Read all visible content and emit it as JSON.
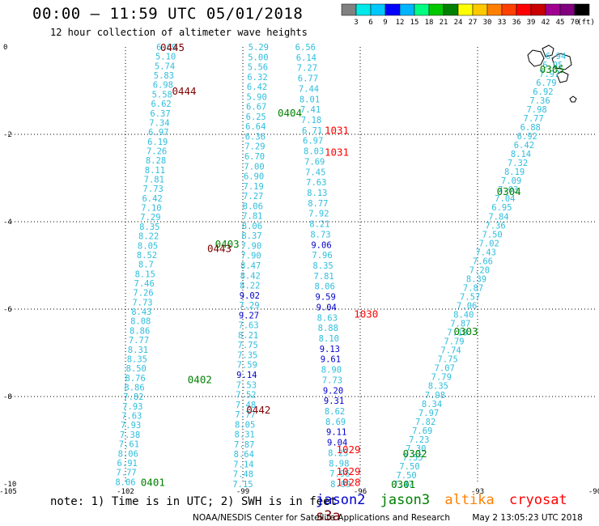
{
  "header": {
    "title": "00:00 – 11:59 UTC 05/01/2018",
    "subtitle": "12 hour collection of altimeter wave heights"
  },
  "colorbar": {
    "unit_label": "(ft)",
    "colors": [
      "#808080",
      "#00e8e8",
      "#00c8ff",
      "#0000ff",
      "#00b4ff",
      "#00ff80",
      "#00c800",
      "#008000",
      "#ffff00",
      "#ffc800",
      "#ff8000",
      "#ff4000",
      "#ff0000",
      "#c80000",
      "#a00090",
      "#800080",
      "#000000"
    ],
    "ticks": [
      "3",
      "6",
      "9",
      "12",
      "15",
      "18",
      "21",
      "24",
      "27",
      "30",
      "33",
      "36",
      "39",
      "42",
      "45",
      "70"
    ]
  },
  "map": {
    "lon_ticks": [
      "-105",
      "-102",
      "-99",
      "-96",
      "-93",
      "-90"
    ],
    "lat_ticks": [
      "0",
      "-2",
      "-4",
      "-6",
      "-8",
      "-10"
    ],
    "colors": {
      "jason2": "#0000cc",
      "jason3": "#008000",
      "altika": "#ff8000",
      "cryosat": "#ff0000",
      "s3a": "#800000",
      "swh_light": "#2ebedc"
    }
  },
  "track_labels": [
    {
      "text": "0445",
      "mission": "s3a",
      "lon": -100.8,
      "lat": 0.0
    },
    {
      "text": "0444",
      "mission": "s3a",
      "lon": -100.5,
      "lat": -1.0
    },
    {
      "text": "0404",
      "mission": "jason3",
      "lon": -97.8,
      "lat": -1.5
    },
    {
      "text": "1031",
      "mission": "cryosat",
      "lon": -96.6,
      "lat": -1.9
    },
    {
      "text": "1031",
      "mission": "cryosat",
      "lon": -96.6,
      "lat": -2.4
    },
    {
      "text": "0403",
      "mission": "jason3",
      "lon": -99.4,
      "lat": -4.5
    },
    {
      "text": "0443",
      "mission": "s3a",
      "lon": -99.6,
      "lat": -4.6
    },
    {
      "text": "1030",
      "mission": "cryosat",
      "lon": -95.85,
      "lat": -6.1
    },
    {
      "text": "0402",
      "mission": "jason3",
      "lon": -100.1,
      "lat": -7.6
    },
    {
      "text": "0442",
      "mission": "s3a",
      "lon": -98.6,
      "lat": -8.3
    },
    {
      "text": "1029",
      "mission": "cryosat",
      "lon": -96.3,
      "lat": -9.2
    },
    {
      "text": "1029",
      "mission": "cryosat",
      "lon": -96.3,
      "lat": -9.7
    },
    {
      "text": "1028",
      "mission": "cryosat",
      "lon": -96.3,
      "lat": -9.95
    },
    {
      "text": "0401",
      "mission": "jason3",
      "lon": -101.3,
      "lat": -9.95
    },
    {
      "text": "0302",
      "mission": "jason3",
      "lon": -94.6,
      "lat": -9.3
    },
    {
      "text": "0301",
      "mission": "jason3",
      "lon": -94.9,
      "lat": -10.0
    },
    {
      "text": "0303",
      "mission": "jason3",
      "lon": -93.3,
      "lat": -6.5
    },
    {
      "text": "0304",
      "mission": "jason3",
      "lon": -92.2,
      "lat": -3.3
    },
    {
      "text": "0305",
      "mission": "jason3",
      "lon": -91.1,
      "lat": -0.5
    }
  ],
  "tracks": [
    {
      "name": "track-a",
      "lon0": -100.95,
      "lat0": 0.0,
      "lon1": -102.0,
      "lat1": -9.95,
      "values": [
        "6.69",
        "5.10",
        "5.74",
        "5.83",
        "6.98",
        "5.58",
        "6.62",
        "6.37",
        "7.34",
        "6.97",
        "6.19",
        "7.26",
        "8.28",
        "8.11",
        "7.81",
        "7.73",
        "6.42",
        "7.10",
        "7.29",
        "8.35",
        "8.22",
        "8.05",
        "8.52",
        "8.7",
        "8.15",
        "7.46",
        "7.26",
        "7.73",
        "8.43",
        "8.08",
        "8.86",
        "7.77",
        "8.31",
        "8.35",
        "8.50",
        "8.76",
        "8.86",
        "7.82",
        "7.93",
        "7.63",
        "7.93",
        "7.38",
        "7.61",
        "8.06",
        "6.91",
        "7.77",
        "8.06"
      ],
      "colors": []
    },
    {
      "name": "track-b",
      "lon0": -98.6,
      "lat0": 0.0,
      "lon1": -99.0,
      "lat1": -10.0,
      "values": [
        "5.29",
        "5.00",
        "5.56",
        "6.32",
        "6.42",
        "5.90",
        "6.67",
        "6.25",
        "6.64",
        "6.36",
        "7.29",
        "6.70",
        "7.00",
        "6.90",
        "7.19",
        "7.27",
        "8.06",
        "7.81",
        "8.06",
        "8.37",
        "7.90",
        "7.90",
        "8.47",
        "8.42",
        "8.22",
        "9.02",
        "7.29",
        "9.27",
        "7.63",
        "8.21",
        "7.75",
        "7.35",
        "7.59",
        "9.14",
        "7.53",
        "7.52",
        "7.48",
        "7.77",
        "8.05",
        "8.31",
        "7.87",
        "8.64",
        "7.14",
        "7.48",
        "7.15"
      ],
      "colors": [
        "",
        "",
        "",
        "",
        "",
        "",
        "",
        "",
        "",
        "",
        "",
        "",
        "",
        "",
        "",
        "",
        "",
        "",
        "",
        "",
        "",
        "",
        "",
        "",
        "",
        "blue",
        "",
        "blue",
        "",
        "",
        "",
        "",
        "",
        "blue",
        "",
        "",
        "",
        "",
        "",
        "",
        "",
        "",
        "",
        "",
        ""
      ]
    },
    {
      "name": "track-c",
      "lon0": -97.4,
      "lat0": 0.0,
      "lon1": -96.5,
      "lat1": -10.0,
      "values": [
        "6.56",
        "6.14",
        "7.27",
        "6.77",
        "7.44",
        "8.01",
        "7.41",
        "7.18",
        "6.71",
        "6.97",
        "8.03",
        "7.69",
        "7.45",
        "7.63",
        "8.13",
        "8.77",
        "7.92",
        "8.21",
        "8.73",
        "9.06",
        "7.96",
        "8.35",
        "7.81",
        "8.06",
        "9.59",
        "9.04",
        "8.63",
        "8.88",
        "8.10",
        "9.13",
        "9.61",
        "8.90",
        "7.73",
        "9.20",
        "9.31",
        "8.62",
        "8.69",
        "9.11",
        "9.04",
        "8.25",
        "8.98",
        "7.96",
        "8.99"
      ],
      "colors": [
        "",
        "",
        "",
        "",
        "",
        "",
        "",
        "",
        "",
        "",
        "",
        "",
        "",
        "",
        "",
        "",
        "",
        "",
        "",
        "blue",
        "",
        "",
        "",
        "",
        "blue",
        "blue",
        "",
        "",
        "",
        "blue",
        "blue",
        "",
        "",
        "blue",
        "blue",
        "",
        "",
        "blue",
        "blue",
        "",
        "",
        "",
        ""
      ]
    },
    {
      "name": "track-d",
      "lon0": -91.0,
      "lat0": -0.2,
      "lon1": -94.9,
      "lat1": -10.0,
      "values": [
        "6.94",
        "6.95",
        "7.97",
        "6.79",
        "6.92",
        "7.36",
        "7.98",
        "7.77",
        "6.88",
        "6.92",
        "6.42",
        "8.14",
        "7.32",
        "8.19",
        "7.09",
        "7.03",
        "7.04",
        "6.95",
        "7.84",
        "7.36",
        "7.50",
        "7.02",
        "7.43",
        "7.66",
        "7.20",
        "8.39",
        "7.87",
        "7.57",
        "7.06",
        "8.40",
        "7.87",
        "7.18",
        "7.79",
        "7.74",
        "7.75",
        "7.07",
        "7.79",
        "8.35",
        "7.98",
        "8.34",
        "7.97",
        "7.82",
        "7.69",
        "7.23",
        "7.30",
        "7.55",
        "7.50",
        "7.50",
        "7.47"
      ],
      "colors": []
    }
  ],
  "legend": {
    "note": "note: 1) Time is in UTC; 2) SWH is in feet",
    "missions": [
      "jason2",
      "jason3",
      "altika",
      "cryosat",
      "s3a"
    ]
  },
  "footer": {
    "credit": "NOAA/NESDIS Center for Satellite Applications and Research",
    "stamp": "May  2 13:05:23 UTC 2018"
  }
}
